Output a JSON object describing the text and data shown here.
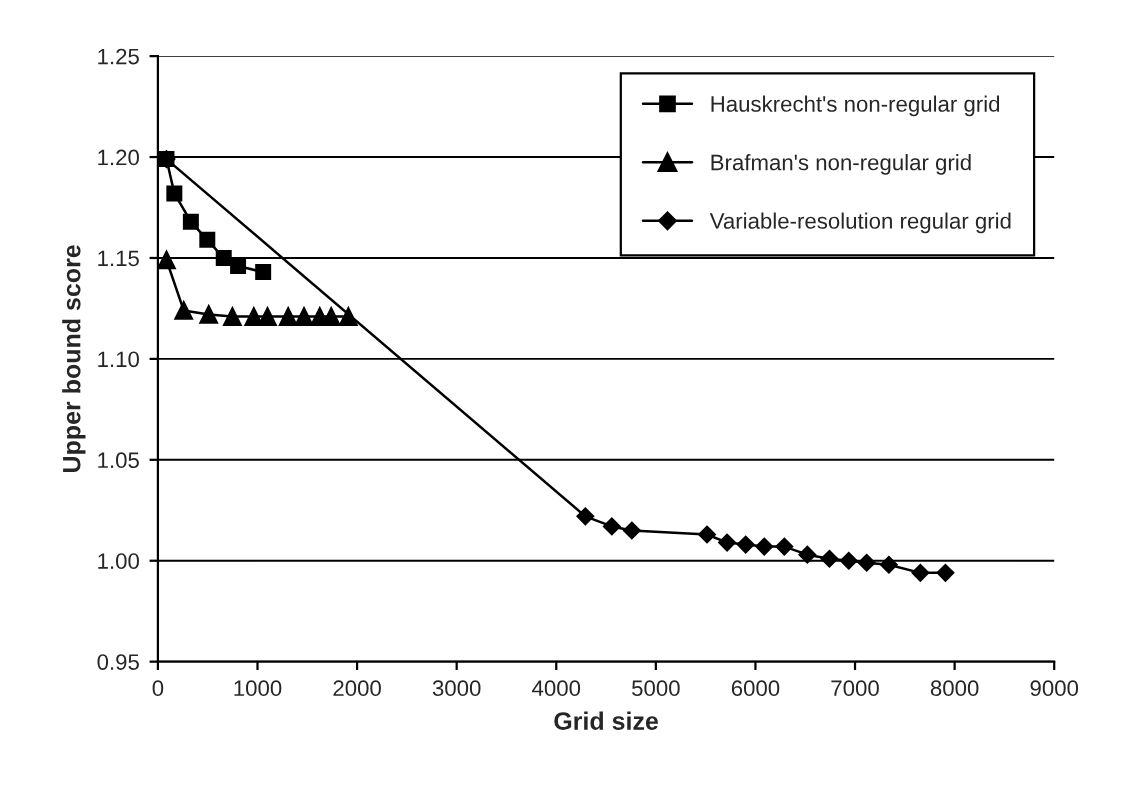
{
  "chart_data": {
    "type": "line",
    "xlabel": "Grid size",
    "ylabel": "Upper bound score",
    "xlim": [
      0,
      9000
    ],
    "xticks": [
      0,
      1000,
      2000,
      3000,
      4000,
      5000,
      6000,
      7000,
      8000,
      9000
    ],
    "ylim": [
      0.95,
      1.25
    ],
    "yticks": [
      {
        "value": 0.95,
        "label": "0.95"
      },
      {
        "value": 1.0,
        "label": "1.00"
      },
      {
        "value": 1.05,
        "label": "1.05"
      },
      {
        "value": 1.1,
        "label": "1.10"
      },
      {
        "value": 1.15,
        "label": "1.15"
      },
      {
        "value": 1.2,
        "label": "1.20"
      },
      {
        "value": 1.25,
        "label": "1.25"
      }
    ],
    "grid": "y",
    "legend": "top right",
    "series": [
      {
        "name": "Hauskrecht's non-regular grid",
        "color": "#000000",
        "marker": "square",
        "x": [
          86,
          165,
          331,
          496,
          661,
          805,
          1057
        ],
        "values": [
          1.199,
          1.182,
          1.168,
          1.159,
          1.15,
          1.146,
          1.143
        ]
      },
      {
        "name": "Brafman's non-regular grid",
        "color": "#000000",
        "marker": "triangle",
        "x": [
          86,
          259,
          510,
          748,
          963,
          1100,
          1308,
          1467,
          1625,
          1740,
          1912
        ],
        "values": [
          1.149,
          1.124,
          1.122,
          1.121,
          1.121,
          1.121,
          1.121,
          1.121,
          1.121,
          1.121,
          1.121
        ]
      },
      {
        "name": "Variable-resolution regular grid",
        "color": "#000000",
        "marker": "diamond",
        "x": [
          86,
          4292,
          4558,
          4759,
          5514,
          5715,
          5902,
          6089,
          6290,
          6521,
          6743,
          6937,
          7117,
          7340,
          7656,
          7908
        ],
        "values": [
          1.199,
          1.022,
          1.017,
          1.015,
          1.013,
          1.009,
          1.008,
          1.007,
          1.007,
          1.003,
          1.001,
          1.0,
          0.999,
          0.998,
          0.994,
          0.994
        ]
      }
    ]
  }
}
